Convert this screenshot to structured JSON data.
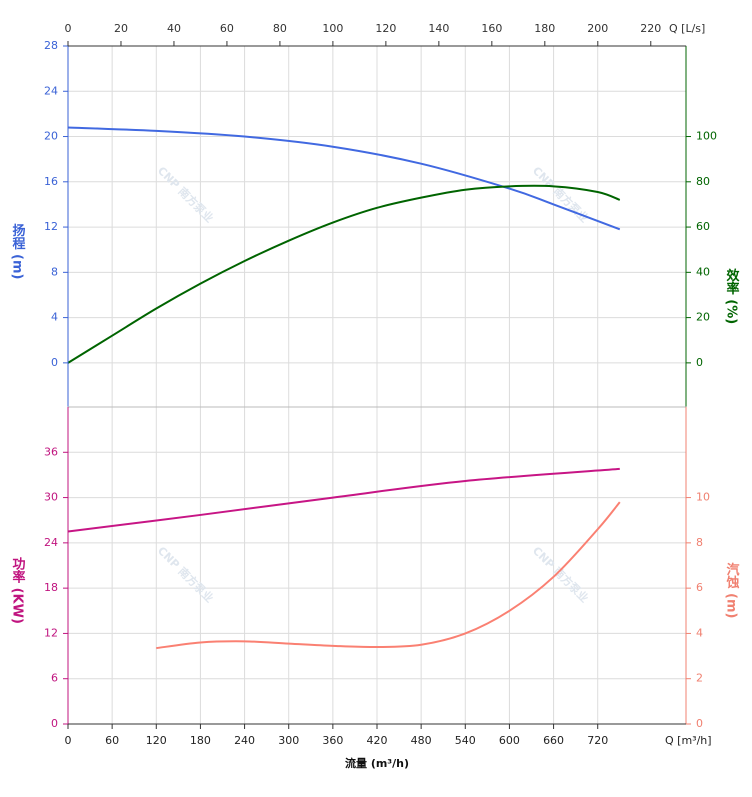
{
  "watermark": "CNP 南方泵业",
  "chart_data": [
    {
      "type": "line",
      "xlim": [
        0,
        840
      ],
      "x2lim": [
        0,
        233.3
      ],
      "x2ticks": [
        0,
        20,
        40,
        60,
        80,
        100,
        120,
        140,
        160,
        180,
        200,
        220
      ],
      "x2label": "Q [L/s]",
      "ylim": [
        -3.9,
        28
      ],
      "yticks": [
        0,
        4,
        8,
        12,
        16,
        20,
        24,
        28
      ],
      "ylabel": "扬程 (m)",
      "ycolor": "#3a62d6",
      "y2lim": [
        -19.5,
        140
      ],
      "y2ticks": [
        0,
        20,
        40,
        60,
        80,
        100
      ],
      "y2label": "效率 (%)",
      "y2color": "#006400",
      "grid": true,
      "series": [
        {
          "color": "#4169e1",
          "x": [
            0,
            120,
            240,
            360,
            480,
            600,
            660,
            750
          ],
          "values": [
            20.8,
            20.5,
            20.0,
            19.1,
            17.6,
            15.4,
            14.0,
            11.8
          ]
        },
        {
          "color": "#006400",
          "axis": "y2",
          "x": [
            0,
            60,
            120,
            180,
            240,
            300,
            360,
            420,
            480,
            540,
            600,
            660,
            720,
            750
          ],
          "values": [
            0,
            12,
            24,
            35,
            45,
            54,
            62,
            68.5,
            73,
            76.5,
            78,
            78,
            75.5,
            72
          ]
        }
      ]
    },
    {
      "type": "line",
      "xlim": [
        0,
        840
      ],
      "xticks": [
        0,
        60,
        120,
        180,
        240,
        300,
        360,
        420,
        480,
        540,
        600,
        660,
        720
      ],
      "xunit": "Q [m³/h]",
      "xlabel": "流量 (m³/h)",
      "ylim": [
        0,
        42
      ],
      "yticks": [
        0,
        6,
        12,
        18,
        24,
        30,
        36
      ],
      "ylabel": "功率 (KW)",
      "ycolor": "#c0147f",
      "y2lim": [
        0,
        14
      ],
      "y2ticks": [
        0,
        2,
        4,
        6,
        8,
        10
      ],
      "y2label": "汽蚀 (m)",
      "y2color": "#f08070",
      "grid": true,
      "series": [
        {
          "color": "#c71585",
          "x": [
            0,
            180,
            360,
            540,
            750
          ],
          "values": [
            25.5,
            27.7,
            30.0,
            32.2,
            33.8
          ]
        },
        {
          "color": "#fa8072",
          "axis": "y2",
          "x": [
            120,
            180,
            240,
            300,
            360,
            420,
            480,
            540,
            600,
            660,
            720,
            750
          ],
          "values": [
            3.35,
            3.6,
            3.65,
            3.55,
            3.45,
            3.4,
            3.5,
            4.0,
            5.0,
            6.5,
            8.6,
            9.8
          ]
        }
      ]
    }
  ]
}
